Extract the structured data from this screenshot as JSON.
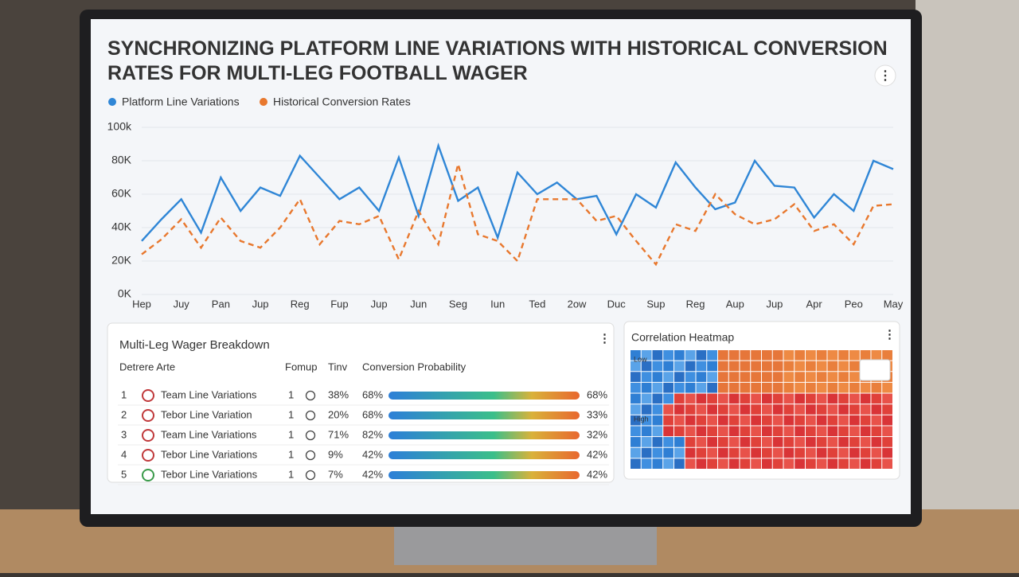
{
  "chart_data": {
    "type": "line",
    "title": "SYNCHRONIZING PLATFORM LINE VARIATIONS WITH HISTORICAL CONVERSION RATES FOR MULTI-LEG FOOTBALL WAGER",
    "x": [
      0,
      1,
      2,
      3,
      4,
      5,
      6,
      7,
      8,
      9,
      10,
      11,
      12,
      13,
      14,
      15,
      16,
      17,
      18,
      19,
      20,
      21,
      22,
      23,
      24,
      25,
      26,
      27,
      28,
      29,
      30,
      31,
      32,
      33,
      34,
      35,
      36,
      37,
      38
    ],
    "xlim": [
      0,
      38
    ],
    "xticks": [
      {
        "value": 0,
        "label": "Hep"
      },
      {
        "value": 2,
        "label": "Juy"
      },
      {
        "value": 4,
        "label": "Pan"
      },
      {
        "value": 6,
        "label": "Jup"
      },
      {
        "value": 8,
        "label": "Reg"
      },
      {
        "value": 10,
        "label": "Fup"
      },
      {
        "value": 12,
        "label": "Jup"
      },
      {
        "value": 14,
        "label": "Jun"
      },
      {
        "value": 16,
        "label": "Seg"
      },
      {
        "value": 18,
        "label": "Iun"
      },
      {
        "value": 20,
        "label": "Ted"
      },
      {
        "value": 22,
        "label": "2ow"
      },
      {
        "value": 24,
        "label": "Duc"
      },
      {
        "value": 26,
        "label": "Sup"
      },
      {
        "value": 28,
        "label": "Reg"
      },
      {
        "value": 30,
        "label": "Aup"
      },
      {
        "value": 32,
        "label": "Jup"
      },
      {
        "value": 34,
        "label": "Apr"
      },
      {
        "value": 36,
        "label": "Peo"
      },
      {
        "value": 38,
        "label": "May"
      }
    ],
    "ylim": [
      0,
      100000
    ],
    "yticks": [
      {
        "value": 0,
        "label": "0K"
      },
      {
        "value": 20000,
        "label": "20K"
      },
      {
        "value": 40000,
        "label": "40K"
      },
      {
        "value": 60000,
        "label": "60K"
      },
      {
        "value": 80000,
        "label": "80K"
      },
      {
        "value": 100000,
        "label": "100k"
      }
    ],
    "series": [
      {
        "name": "Platform Line Variations",
        "color": "#2f86d6",
        "dashed": false,
        "values": [
          32000,
          45000,
          57000,
          37000,
          70000,
          50000,
          64000,
          59000,
          83000,
          70000,
          57000,
          64000,
          50000,
          82000,
          47000,
          89000,
          56000,
          64000,
          34000,
          73000,
          60000,
          67000,
          57000,
          59000,
          36000,
          60000,
          52000,
          79000,
          64000,
          51000,
          55000,
          80000,
          65000,
          64000,
          46000,
          60000,
          50000,
          80000,
          75000
        ]
      },
      {
        "name": "Historical Conversion Rates",
        "color": "#e8782e",
        "dashed": true,
        "values": [
          24000,
          33000,
          45000,
          28000,
          46000,
          32000,
          28000,
          40000,
          57000,
          30000,
          44000,
          42000,
          47000,
          21000,
          50000,
          30000,
          78000,
          36000,
          32000,
          20000,
          57000,
          57000,
          57000,
          44000,
          47000,
          32000,
          18000,
          42000,
          38000,
          60000,
          48000,
          42000,
          45000,
          54000,
          38000,
          42000,
          30000,
          53000,
          54000
        ]
      }
    ]
  },
  "table": {
    "title": "Multi-Leg Wager Breakdown",
    "headers": [
      "Detrere Arte",
      "Fomup",
      "Tinv",
      "Conversion Probability"
    ],
    "rows": [
      [
        "1",
        "Team Line Variations",
        "1",
        "38%",
        "68%",
        "68%"
      ],
      [
        "2",
        "Tebor Line Variation",
        "1",
        "20%",
        "68%",
        "33%"
      ],
      [
        "3",
        "Team Line Variations",
        "1",
        "71%",
        "82%",
        "32%"
      ],
      [
        "4",
        "Tebor Line Variations",
        "1",
        "9%",
        "42%",
        "42%"
      ],
      [
        "5",
        "Tebor Line Variations",
        "1",
        "7%",
        "42%",
        "42%"
      ]
    ]
  },
  "heatmap": {
    "title": "Correlation Heatmap",
    "low_label": "Low",
    "high_label": "High"
  }
}
